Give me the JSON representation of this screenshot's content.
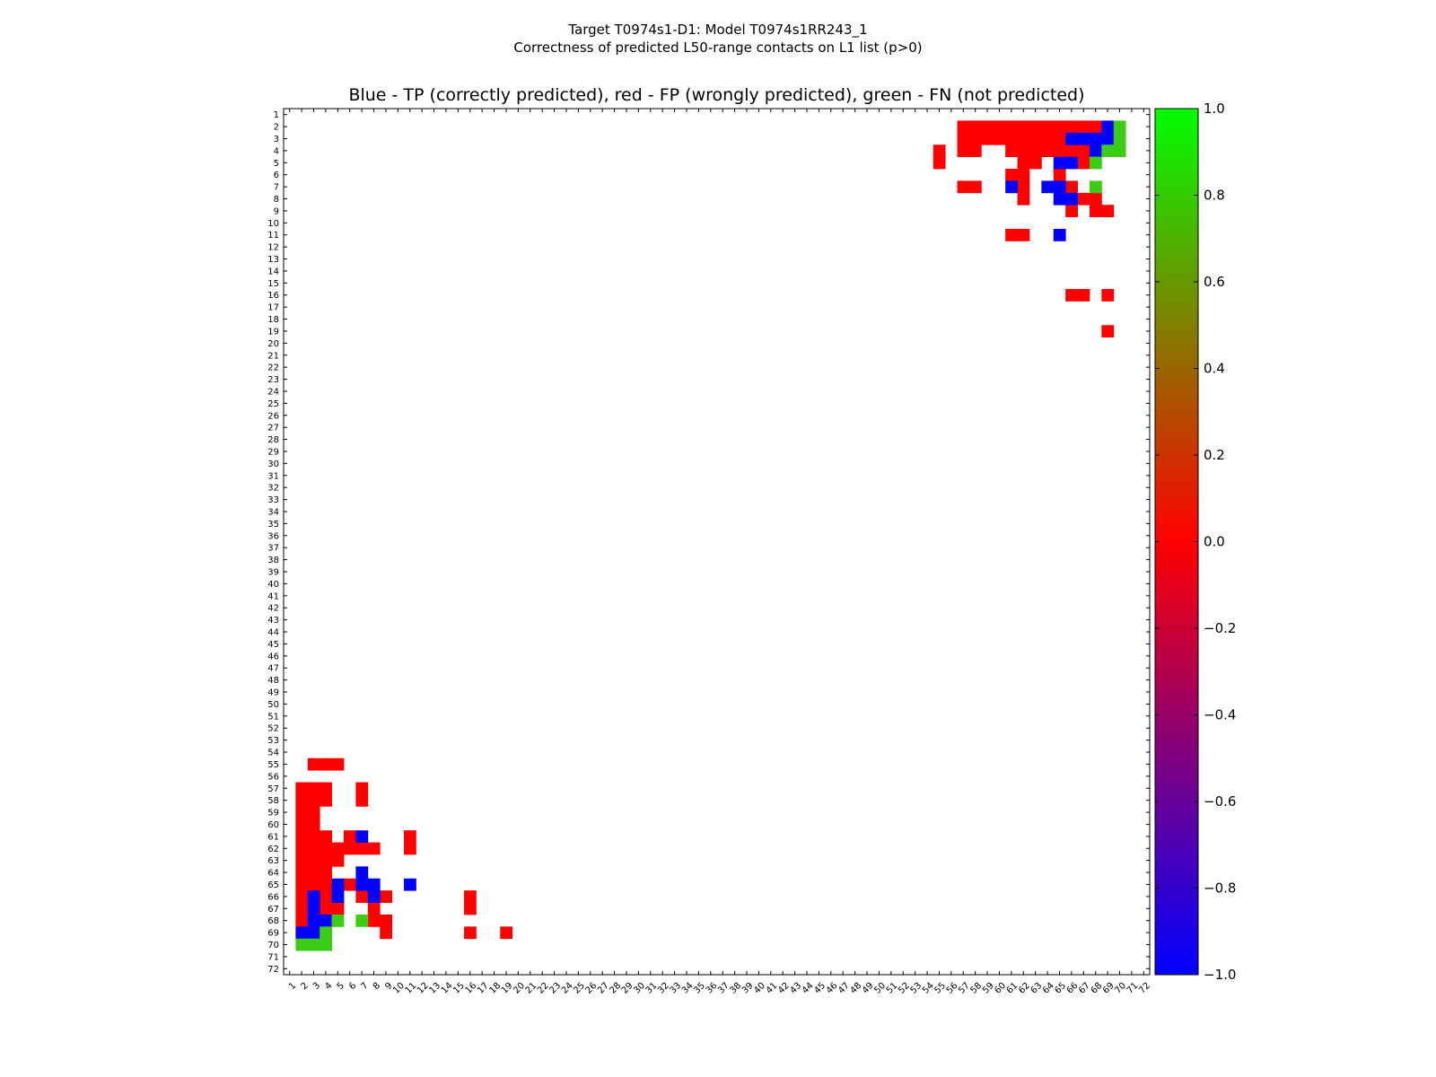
{
  "chart_data": {
    "type": "heatmap",
    "title": "Target T0974s1-D1: Model T0974s1RR243_1",
    "subtitle": "Correctness of predicted L50-range contacts on L1 list (p>0)",
    "axes_title": "Blue - TP (correctly predicted), red - FP (wrongly predicted), green - FN (not predicted)",
    "x_range": [
      1,
      72
    ],
    "y_range": [
      1,
      72
    ],
    "x_ticks": [
      1,
      2,
      3,
      4,
      5,
      6,
      7,
      8,
      9,
      10,
      11,
      12,
      13,
      14,
      15,
      16,
      17,
      18,
      19,
      20,
      21,
      22,
      23,
      24,
      25,
      26,
      27,
      28,
      29,
      30,
      31,
      32,
      33,
      34,
      35,
      36,
      37,
      38,
      39,
      40,
      41,
      42,
      43,
      44,
      45,
      46,
      47,
      48,
      49,
      50,
      51,
      52,
      53,
      54,
      55,
      56,
      57,
      58,
      59,
      60,
      61,
      62,
      63,
      64,
      65,
      66,
      67,
      68,
      69,
      70,
      71,
      72
    ],
    "y_ticks": [
      1,
      2,
      3,
      4,
      5,
      6,
      7,
      8,
      9,
      10,
      11,
      12,
      13,
      14,
      15,
      16,
      17,
      18,
      19,
      20,
      21,
      22,
      23,
      24,
      25,
      26,
      27,
      28,
      29,
      30,
      31,
      32,
      33,
      34,
      35,
      36,
      37,
      38,
      39,
      40,
      41,
      42,
      43,
      44,
      45,
      46,
      47,
      48,
      49,
      50,
      51,
      52,
      53,
      54,
      55,
      56,
      57,
      58,
      59,
      60,
      61,
      62,
      63,
      64,
      65,
      66,
      67,
      68,
      69,
      70,
      71,
      72
    ],
    "colorbar": {
      "min": -1.0,
      "max": 1.0,
      "tick_labels": [
        "1.0",
        "0.8",
        "0.6",
        "0.4",
        "0.2",
        "0.0",
        "−0.2",
        "−0.4",
        "−0.6",
        "−0.8",
        "−1.0"
      ],
      "tick_values": [
        1.0,
        0.8,
        0.6,
        0.4,
        0.2,
        0.0,
        -0.2,
        -0.4,
        -0.6,
        -0.8,
        -1.0
      ],
      "gradient_stops": [
        {
          "value": -1.0,
          "color": "#0000ff"
        },
        {
          "value": 0.0,
          "color": "#ff0000"
        },
        {
          "value": 1.0,
          "color": "#00ff00"
        }
      ]
    },
    "colors": {
      "TP": "#0000ff",
      "FP": "#ff0000",
      "FN": "#3ccc14"
    },
    "cell_value_legend": {
      "TP": -1,
      "FP": 0,
      "FN": 1
    },
    "cells": {
      "TP": [
        [
          69,
          2
        ],
        [
          66,
          3
        ],
        [
          67,
          3
        ],
        [
          68,
          3
        ],
        [
          69,
          3
        ],
        [
          68,
          4
        ],
        [
          65,
          5
        ],
        [
          66,
          5
        ],
        [
          61,
          7
        ],
        [
          64,
          7
        ],
        [
          65,
          7
        ],
        [
          65,
          8
        ],
        [
          66,
          8
        ],
        [
          65,
          11
        ],
        [
          7,
          61
        ],
        [
          7,
          64
        ],
        [
          5,
          65
        ],
        [
          7,
          65
        ],
        [
          8,
          65
        ],
        [
          11,
          65
        ],
        [
          3,
          66
        ],
        [
          5,
          66
        ],
        [
          8,
          66
        ],
        [
          3,
          67
        ],
        [
          3,
          68
        ],
        [
          4,
          68
        ],
        [
          2,
          69
        ],
        [
          3,
          69
        ]
      ],
      "FN": [
        [
          70,
          2
        ],
        [
          70,
          3
        ],
        [
          69,
          4
        ],
        [
          70,
          4
        ],
        [
          68,
          5
        ],
        [
          68,
          7
        ],
        [
          5,
          68
        ],
        [
          7,
          68
        ],
        [
          4,
          69
        ],
        [
          2,
          70
        ],
        [
          3,
          70
        ],
        [
          4,
          70
        ]
      ],
      "FP": [
        [
          57,
          2
        ],
        [
          58,
          2
        ],
        [
          59,
          2
        ],
        [
          60,
          2
        ],
        [
          61,
          2
        ],
        [
          62,
          2
        ],
        [
          63,
          2
        ],
        [
          64,
          2
        ],
        [
          65,
          2
        ],
        [
          66,
          2
        ],
        [
          67,
          2
        ],
        [
          68,
          2
        ],
        [
          57,
          3
        ],
        [
          58,
          3
        ],
        [
          59,
          3
        ],
        [
          60,
          3
        ],
        [
          61,
          3
        ],
        [
          62,
          3
        ],
        [
          63,
          3
        ],
        [
          64,
          3
        ],
        [
          65,
          3
        ],
        [
          55,
          4
        ],
        [
          57,
          4
        ],
        [
          58,
          4
        ],
        [
          61,
          4
        ],
        [
          62,
          4
        ],
        [
          63,
          4
        ],
        [
          64,
          4
        ],
        [
          65,
          4
        ],
        [
          66,
          4
        ],
        [
          67,
          4
        ],
        [
          55,
          5
        ],
        [
          62,
          5
        ],
        [
          63,
          5
        ],
        [
          67,
          5
        ],
        [
          61,
          6
        ],
        [
          62,
          6
        ],
        [
          65,
          6
        ],
        [
          57,
          7
        ],
        [
          58,
          7
        ],
        [
          62,
          7
        ],
        [
          66,
          7
        ],
        [
          62,
          8
        ],
        [
          67,
          8
        ],
        [
          68,
          8
        ],
        [
          66,
          9
        ],
        [
          68,
          9
        ],
        [
          69,
          9
        ],
        [
          61,
          11
        ],
        [
          62,
          11
        ],
        [
          66,
          16
        ],
        [
          67,
          16
        ],
        [
          69,
          16
        ],
        [
          69,
          19
        ],
        [
          3,
          55
        ],
        [
          4,
          55
        ],
        [
          5,
          55
        ],
        [
          2,
          57
        ],
        [
          3,
          57
        ],
        [
          4,
          57
        ],
        [
          7,
          57
        ],
        [
          2,
          58
        ],
        [
          3,
          58
        ],
        [
          4,
          58
        ],
        [
          7,
          58
        ],
        [
          2,
          59
        ],
        [
          3,
          59
        ],
        [
          2,
          60
        ],
        [
          3,
          60
        ],
        [
          2,
          61
        ],
        [
          3,
          61
        ],
        [
          4,
          61
        ],
        [
          6,
          61
        ],
        [
          11,
          61
        ],
        [
          2,
          62
        ],
        [
          3,
          62
        ],
        [
          4,
          62
        ],
        [
          5,
          62
        ],
        [
          6,
          62
        ],
        [
          7,
          62
        ],
        [
          8,
          62
        ],
        [
          11,
          62
        ],
        [
          2,
          63
        ],
        [
          3,
          63
        ],
        [
          4,
          63
        ],
        [
          5,
          63
        ],
        [
          2,
          64
        ],
        [
          3,
          64
        ],
        [
          4,
          64
        ],
        [
          2,
          65
        ],
        [
          3,
          65
        ],
        [
          4,
          65
        ],
        [
          6,
          65
        ],
        [
          2,
          66
        ],
        [
          4,
          66
        ],
        [
          7,
          66
        ],
        [
          9,
          66
        ],
        [
          16,
          66
        ],
        [
          2,
          67
        ],
        [
          4,
          67
        ],
        [
          5,
          67
        ],
        [
          8,
          67
        ],
        [
          16,
          67
        ],
        [
          2,
          68
        ],
        [
          8,
          68
        ],
        [
          9,
          68
        ],
        [
          9,
          69
        ],
        [
          16,
          69
        ],
        [
          19,
          69
        ]
      ]
    }
  }
}
